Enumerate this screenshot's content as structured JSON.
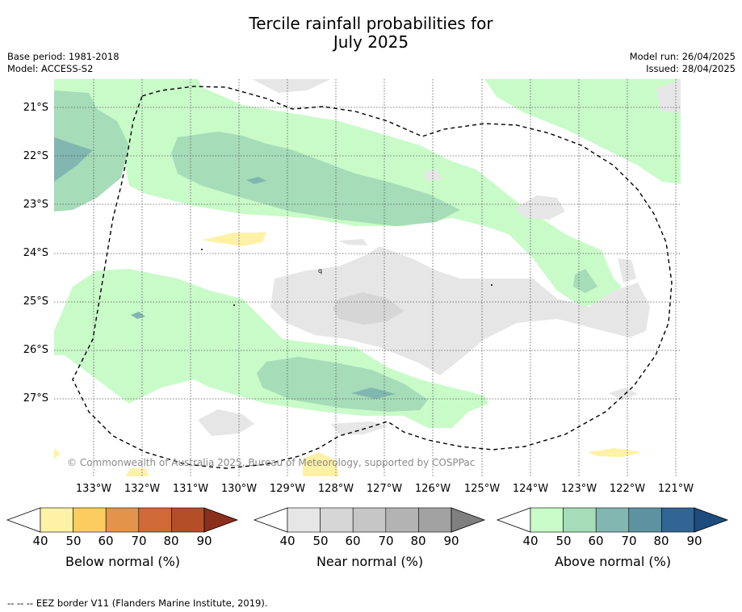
{
  "title_line1": "Tercile rainfall probabilities for",
  "title_line2": "July 2025",
  "meta_left": [
    "Base period: 1981-2018",
    "Model: ACCESS-S2"
  ],
  "meta_right": [
    "Model run: 26/04/2025",
    "Issued: 28/04/2025"
  ],
  "lat_labels": [
    "21°S",
    "22°S",
    "23°S",
    "24°S",
    "25°S",
    "26°S",
    "27°S"
  ],
  "lon_labels": [
    "133°W",
    "132°W",
    "131°W",
    "130°W",
    "129°W",
    "128°W",
    "127°W",
    "126°W",
    "125°W",
    "124°W",
    "123°W",
    "122°W",
    "121°W"
  ],
  "copyright": "© Commonwealth of Australia 2025, Bureau of Meteorology, supported by COSPPac",
  "colorbars": [
    {
      "label": "Below normal (%)",
      "ticks": [
        "40",
        "50",
        "60",
        "70",
        "80",
        "90"
      ],
      "colors": [
        "#fff1a6",
        "#fdcc60",
        "#e3934a",
        "#cf6a36",
        "#b34e29",
        "#8a2f1c"
      ]
    },
    {
      "label": "Near normal (%)",
      "ticks": [
        "40",
        "50",
        "60",
        "70",
        "80",
        "90"
      ],
      "colors": [
        "#e6e6e6",
        "#d6d6d6",
        "#c6c6c6",
        "#b3b3b3",
        "#a2a2a2",
        "#7f7f7f"
      ]
    },
    {
      "label": "Above normal (%)",
      "ticks": [
        "40",
        "50",
        "60",
        "70",
        "80",
        "90"
      ],
      "colors": [
        "#c8fbc8",
        "#a6dcb8",
        "#82b6b0",
        "#5d93a0",
        "#326494",
        "#1e4c7e"
      ]
    }
  ],
  "footer": "--  --  -- EEZ border V11 (Flanders Marine Institute, 2019)."
}
